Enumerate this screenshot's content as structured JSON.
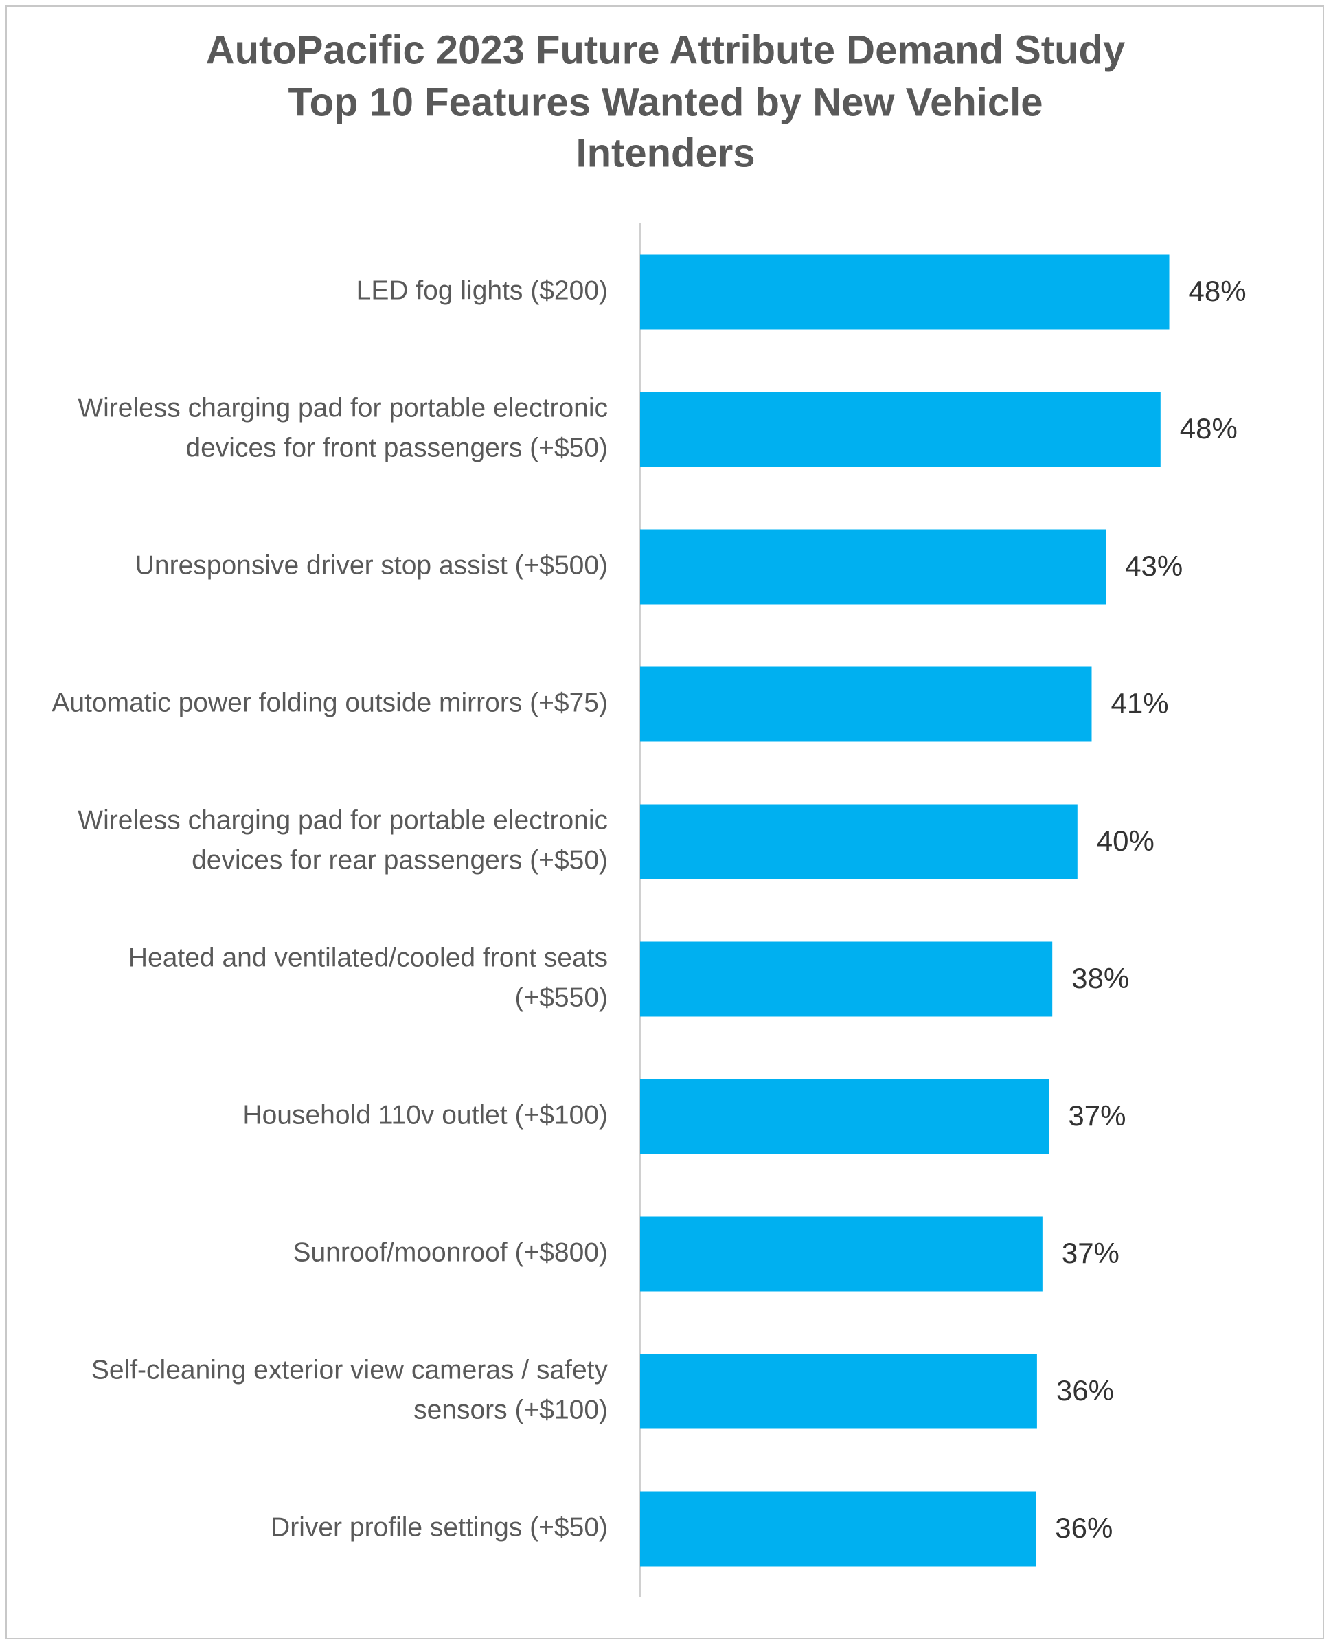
{
  "chart_data": {
    "type": "bar",
    "orientation": "horizontal",
    "title": [
      "AutoPacific 2023 Future Attribute Demand Study",
      "Top 10 Features Wanted by New Vehicle",
      "Intenders"
    ],
    "categories": [
      [
        "LED fog lights ($200)"
      ],
      [
        "Wireless charging pad for portable electronic",
        "devices for front passengers (+$50)"
      ],
      [
        "Unresponsive driver stop assist (+$500)"
      ],
      [
        "Automatic power folding outside mirrors (+$75)"
      ],
      [
        "Wireless charging pad for portable electronic",
        "devices for rear passengers (+$50)"
      ],
      [
        "Heated and ventilated/cooled front seats",
        "(+$550)"
      ],
      [
        "Household 110v outlet (+$100)"
      ],
      [
        "Sunroof/moonroof (+$800)"
      ],
      [
        "Self-cleaning exterior view cameras / safety",
        "sensors (+$100)"
      ],
      [
        "Driver profile settings (+$50)"
      ]
    ],
    "values": [
      48.4,
      47.6,
      42.6,
      41.3,
      40.0,
      37.7,
      37.4,
      36.8,
      36.3,
      36.2
    ],
    "value_labels": [
      "48%",
      "48%",
      "43%",
      "41%",
      "40%",
      "38%",
      "37%",
      "37%",
      "36%",
      "36%"
    ],
    "color": "#00b0f0",
    "xlim": [
      0,
      50
    ],
    "grid": false
  }
}
